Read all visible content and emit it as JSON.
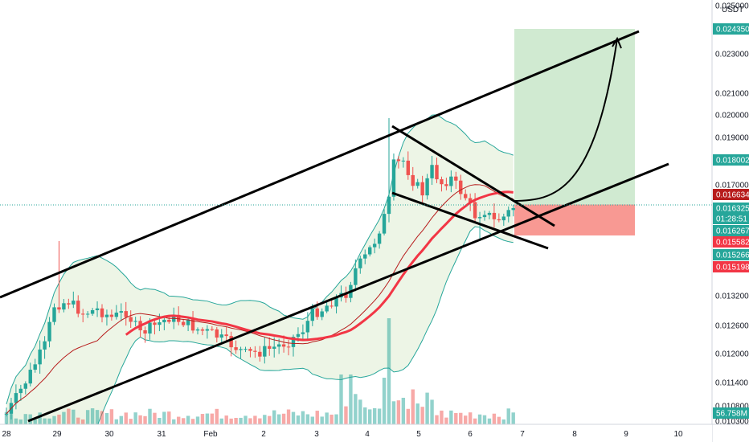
{
  "chart_data": {
    "type": "candlestick",
    "currency": "USDT",
    "x_ticks": [
      "28",
      "29",
      "30",
      "31",
      "Feb",
      "2",
      "3",
      "4",
      "5",
      "6",
      "7",
      "8",
      "9",
      "10"
    ],
    "y_ticks": [
      "0.025000",
      "0.023000",
      "0.021000",
      "0.020000",
      "0.019000",
      "0.017000",
      "0.013200",
      "0.012600",
      "0.012000",
      "0.011400",
      "0.010800",
      "0.010300"
    ],
    "price_tags": [
      {
        "value": "0.024350",
        "color": "#26a69a"
      },
      {
        "value": "0.018002",
        "color": "#26a69a"
      },
      {
        "value": "0.016634",
        "color": "#b71c1c"
      },
      {
        "value": "0.016325",
        "color": "#26a69a"
      },
      {
        "value": "01:28:51",
        "color": "#26a69a"
      },
      {
        "value": "0.016267",
        "color": "#26a69a"
      },
      {
        "value": "0.015582",
        "color": "#f23645"
      },
      {
        "value": "0.015266",
        "color": "#26a69a"
      },
      {
        "value": "0.015198",
        "color": "#f23645"
      },
      {
        "value": "56.758M",
        "color": "#26a69a"
      }
    ],
    "last_price": 0.016325,
    "target_price": 0.02435,
    "stop_price": 0.015198,
    "colors": {
      "up": "#26a69a",
      "down": "#ef5350",
      "bollinger_band": "#26a69a",
      "band_fill": "#e8f2e0",
      "ma_fast": "#b71c1c",
      "ma_slow": "#f23645",
      "trend_lines": "#000000",
      "target_zone": "#c8e6c9",
      "stop_zone": "#f8938d"
    },
    "grid": false,
    "legend": "none"
  }
}
